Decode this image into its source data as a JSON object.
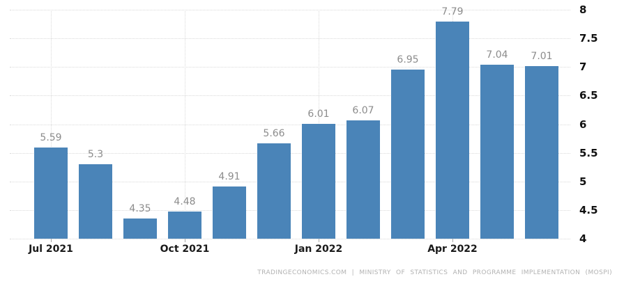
{
  "chart_data": {
    "type": "bar",
    "title": "",
    "xlabel": "",
    "ylabel": "",
    "values": [
      5.59,
      5.3,
      4.35,
      4.48,
      4.91,
      5.66,
      6.01,
      6.07,
      6.95,
      7.79,
      7.04,
      7.01
    ],
    "bar_labels": [
      "5.59",
      "5.3",
      "4.35",
      "4.48",
      "4.91",
      "5.66",
      "6.01",
      "6.07",
      "6.95",
      "7.79",
      "7.04",
      "7.01"
    ],
    "x_ticks": [
      {
        "bar_index": 0,
        "label": "Jul 2021"
      },
      {
        "bar_index": 3,
        "label": "Oct 2021"
      },
      {
        "bar_index": 6,
        "label": "Jan 2022"
      },
      {
        "bar_index": 9,
        "label": "Apr 2022"
      }
    ],
    "y_ticks": [
      4,
      4.5,
      5,
      5.5,
      6,
      6.5,
      7,
      7.5,
      8
    ],
    "y_tick_labels": [
      "4",
      "4.5",
      "5",
      "5.5",
      "6",
      "6.5",
      "7",
      "7.5",
      "8"
    ],
    "ylim": [
      4,
      8
    ],
    "grid": true,
    "legend": "none",
    "colors": {
      "bar": "#4a84b8",
      "value_label": "#8c8c8c",
      "axis_label": "#1a1a1a",
      "gridline": "#d9d9d9",
      "background": "#ffffff",
      "attribution_text": "#b2b2b2"
    }
  },
  "footer": {
    "attribution": "TRADINGECONOMICS.COM | MINISTRY OF STATISTICS AND PROGRAMME IMPLEMENTATION (MOSPI)"
  }
}
